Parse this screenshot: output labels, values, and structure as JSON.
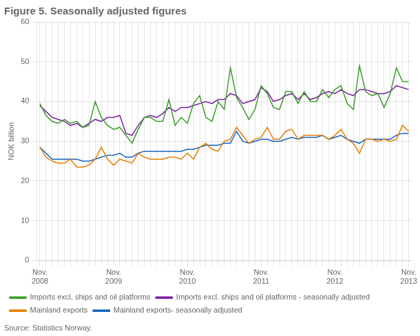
{
  "chart_data": {
    "type": "line",
    "title": "Figure 5. Seasonally adjusted figures",
    "ylabel": "NOK billion",
    "source": "Source: Statistics Norway.",
    "categories": [
      "Nov.\n2008",
      null,
      null,
      null,
      null,
      null,
      null,
      null,
      null,
      null,
      null,
      null,
      "Nov.\n2009",
      null,
      null,
      null,
      null,
      null,
      null,
      null,
      null,
      null,
      null,
      null,
      "Nov.\n2010",
      null,
      null,
      null,
      null,
      null,
      null,
      null,
      null,
      null,
      null,
      null,
      "Nov.\n2011",
      null,
      null,
      null,
      null,
      null,
      null,
      null,
      null,
      null,
      null,
      null,
      "Nov.\n2012",
      null,
      null,
      null,
      null,
      null,
      null,
      null,
      null,
      null,
      null,
      null,
      "Nov.\n2013"
    ],
    "series": [
      {
        "name": "Imports excl. ships and oil platforms",
        "color": "#3a9c2a",
        "values": [
          39.5,
          36.5,
          35.0,
          34.5,
          35.5,
          34.5,
          35.0,
          33.5,
          34.0,
          40.0,
          36.0,
          34.0,
          33.0,
          33.5,
          31.5,
          29.5,
          33.0,
          36.0,
          36.0,
          35.0,
          35.0,
          40.5,
          34.0,
          36.0,
          34.5,
          39.5,
          41.5,
          36.0,
          35.0,
          40.0,
          38.0,
          48.5,
          41.0,
          38.5,
          35.5,
          38.0,
          44.0,
          42.0,
          38.5,
          38.0,
          42.5,
          42.5,
          39.5,
          42.5,
          40.0,
          40.0,
          43.0,
          41.0,
          43.0,
          44.0,
          39.5,
          38.0,
          49.0,
          42.5,
          41.5,
          42.0,
          38.5,
          42.0,
          48.5,
          45.0,
          45.0
        ]
      },
      {
        "name": "Imports excl. ships and oil platforms - seasonally adjusted",
        "color": "#7b1fa2",
        "values": [
          39.0,
          37.5,
          36.0,
          35.5,
          35.0,
          34.0,
          34.5,
          33.5,
          34.5,
          35.5,
          35.0,
          36.0,
          36.0,
          36.5,
          32.0,
          31.5,
          34.0,
          36.0,
          36.5,
          36.0,
          37.0,
          38.5,
          37.5,
          38.5,
          38.5,
          39.0,
          39.5,
          40.0,
          39.5,
          40.5,
          40.5,
          42.0,
          41.5,
          39.5,
          40.0,
          40.5,
          43.5,
          42.5,
          40.0,
          40.5,
          41.5,
          42.0,
          40.5,
          42.0,
          40.5,
          41.0,
          42.0,
          42.5,
          42.0,
          43.0,
          42.0,
          41.5,
          43.0,
          43.0,
          42.5,
          42.0,
          42.0,
          42.5,
          44.0,
          43.5,
          43.0
        ]
      },
      {
        "name": "Mainland exports",
        "color": "#e67c00",
        "values": [
          28.5,
          26.0,
          25.0,
          24.5,
          24.5,
          25.5,
          23.5,
          23.5,
          24.0,
          25.5,
          28.5,
          25.5,
          24.0,
          25.5,
          25.0,
          24.5,
          27.0,
          26.0,
          25.5,
          25.5,
          25.5,
          26.0,
          26.0,
          25.5,
          27.0,
          25.5,
          28.5,
          29.5,
          28.0,
          27.5,
          30.0,
          30.5,
          33.5,
          31.5,
          29.5,
          30.5,
          31.0,
          33.5,
          30.5,
          30.5,
          32.5,
          33.0,
          30.5,
          31.5,
          31.5,
          31.5,
          31.5,
          30.5,
          31.5,
          33.0,
          30.5,
          29.5,
          27.0,
          30.5,
          30.5,
          30.0,
          30.5,
          30.0,
          30.5,
          34.0,
          32.5
        ]
      },
      {
        "name": "Mainland exports- seasonally adjusted",
        "color": "#1565c0",
        "values": [
          28.5,
          27.0,
          25.5,
          25.5,
          25.5,
          25.5,
          25.5,
          25.0,
          25.0,
          25.5,
          26.0,
          26.5,
          26.5,
          27.0,
          26.0,
          26.0,
          27.0,
          27.5,
          27.5,
          27.5,
          27.5,
          27.5,
          27.5,
          27.5,
          28.0,
          28.0,
          28.5,
          29.0,
          29.0,
          29.0,
          29.5,
          29.5,
          32.5,
          30.0,
          29.5,
          30.0,
          30.5,
          30.5,
          30.0,
          30.0,
          30.5,
          31.0,
          30.5,
          31.0,
          31.0,
          31.0,
          31.5,
          30.5,
          31.0,
          31.5,
          30.5,
          30.0,
          29.5,
          30.5,
          30.5,
          30.5,
          30.5,
          30.5,
          31.5,
          32.0,
          32.0
        ]
      }
    ],
    "ylim": [
      0,
      60
    ],
    "yticks": [
      0,
      10,
      20,
      30,
      40,
      50,
      60
    ],
    "grid": true,
    "legend": "bottom"
  }
}
